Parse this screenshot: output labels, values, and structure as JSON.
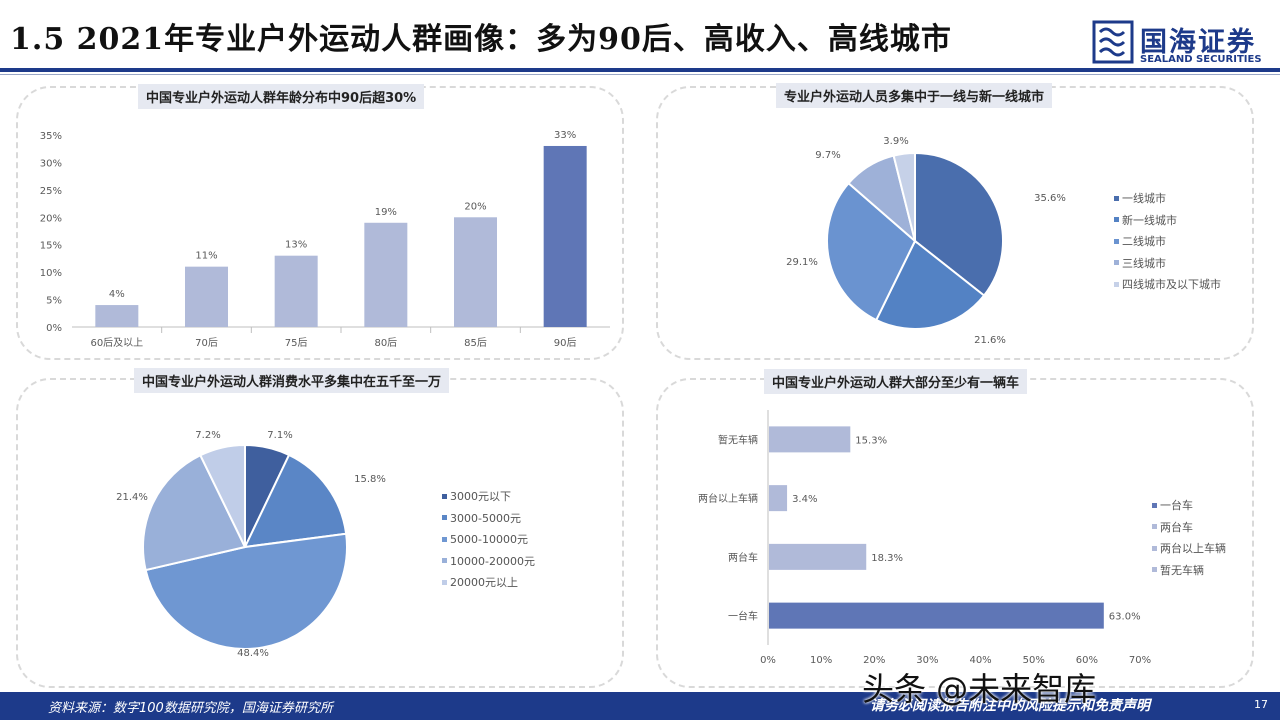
{
  "header": {
    "title": "1.5 2021年专业户外运动人群画像：多为90后、高收入、高线城市",
    "logo_cn": "国海证券",
    "logo_en": "SEALAND SECURITIES"
  },
  "footer": {
    "source": "资料来源：数字100数据研究院，国海证券研究所",
    "disclaimer": "请务必阅读报告附注中的风险提示和免责声明",
    "page": "17",
    "watermark": "头条 @未来智库"
  },
  "colors": {
    "brand": "#1d3a8a",
    "bar_light": "#b0bad9",
    "bar_dark": "#5f76b6"
  },
  "chart_data": [
    {
      "type": "bar",
      "title": "中国专业户外运动人群年龄分布中90后超30%",
      "categories": [
        "60后及以上",
        "70后",
        "75后",
        "80后",
        "85后",
        "90后"
      ],
      "values": [
        4,
        11,
        13,
        19,
        20,
        33
      ],
      "data_labels": [
        "4%",
        "11%",
        "13%",
        "19%",
        "20%",
        "33%"
      ],
      "yticks": [
        "0%",
        "5%",
        "10%",
        "15%",
        "20%",
        "25%",
        "30%",
        "35%"
      ],
      "ylim": [
        0,
        35
      ],
      "highlight_index": 5
    },
    {
      "type": "pie",
      "title": "专业户外运动人员多集中于一线与新一线城市",
      "labels": [
        "一线城市",
        "新一线城市",
        "二线城市",
        "三线城市",
        "四线城市及以下城市"
      ],
      "values": [
        35.6,
        21.6,
        29.1,
        9.7,
        3.9
      ],
      "data_labels": [
        "35.6%",
        "21.6%",
        "29.1%",
        "9.7%",
        "3.9%"
      ],
      "colors": [
        "#4a6ead",
        "#5382c4",
        "#6a93d0",
        "#9eb1d8",
        "#c6d1e8"
      ],
      "legend": "right"
    },
    {
      "type": "pie",
      "title": "中国专业户外运动人群消费水平多集中在五千至一万",
      "labels": [
        "3000元以下",
        "3000-5000元",
        "5000-10000元",
        "10000-20000元",
        "20000元以上"
      ],
      "values": [
        7.1,
        15.8,
        48.4,
        21.4,
        7.2
      ],
      "data_labels": [
        "7.1%",
        "15.8%",
        "48.4%",
        "21.4%",
        "7.2%"
      ],
      "colors": [
        "#3f5f9e",
        "#5a86c6",
        "#6f97d2",
        "#99b0d9",
        "#c0cde8"
      ],
      "legend": "right"
    },
    {
      "type": "bar",
      "orientation": "horizontal",
      "title": "中国专业户外运动人群大部分至少有一辆车",
      "categories": [
        "暂无车辆",
        "两台以上车辆",
        "两台车",
        "一台车"
      ],
      "values": [
        15.3,
        3.4,
        18.3,
        63.0
      ],
      "data_labels": [
        "15.3%",
        "3.4%",
        "18.3%",
        "63.0%"
      ],
      "xticks": [
        "0%",
        "10%",
        "20%",
        "30%",
        "40%",
        "50%",
        "60%",
        "70%"
      ],
      "xlim": [
        0,
        70
      ],
      "legend_entries": [
        "一台车",
        "两台车",
        "两台以上车辆",
        "暂无车辆"
      ],
      "legend_colors": [
        "#5f76b6",
        "#b0bad9",
        "#b0bad9",
        "#b0bad9"
      ],
      "legend": "right",
      "highlight_index": 3
    }
  ]
}
